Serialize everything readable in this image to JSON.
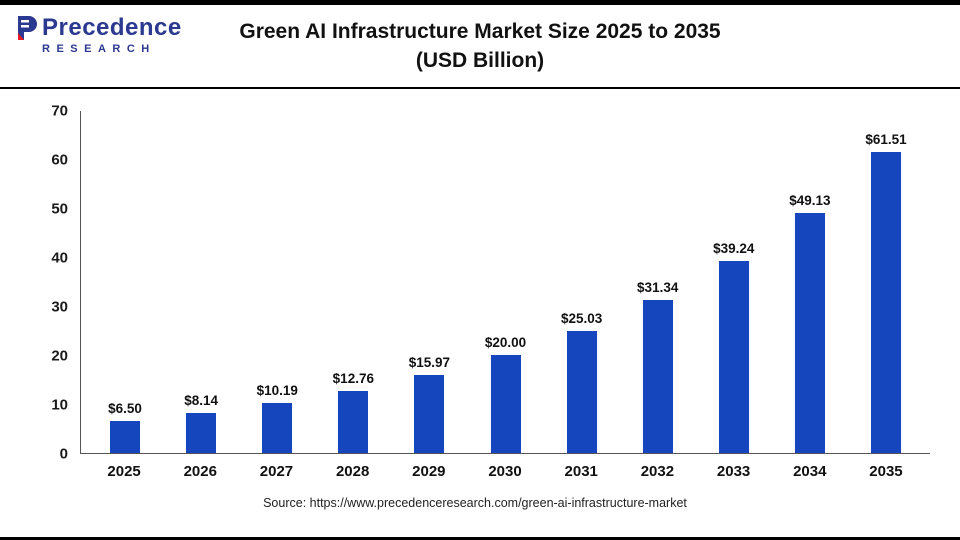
{
  "header": {
    "logo_line1": "Precedence",
    "logo_line2": "RESEARCH",
    "title_line1": "Green AI Infrastructure Market Size 2025 to 2035",
    "title_line2": "(USD Billion)"
  },
  "chart_data": {
    "type": "bar",
    "title": "Green AI Infrastructure Market Size 2025 to 2035 (USD Billion)",
    "categories": [
      "2025",
      "2026",
      "2027",
      "2028",
      "2029",
      "2030",
      "2031",
      "2032",
      "2033",
      "2034",
      "2035"
    ],
    "values": [
      6.5,
      8.14,
      10.19,
      12.76,
      15.97,
      20.0,
      25.03,
      31.34,
      39.24,
      49.13,
      61.51
    ],
    "labels": [
      "$6.50",
      "$8.14",
      "$10.19",
      "$12.76",
      "$15.97",
      "$20.00",
      "$25.03",
      "$31.34",
      "$39.24",
      "$49.13",
      "$61.51"
    ],
    "xlabel": "",
    "ylabel": "",
    "ylim": [
      0,
      70
    ],
    "yticks": [
      0,
      10,
      20,
      30,
      40,
      50,
      60,
      70
    ],
    "grid": false,
    "legend": "none",
    "bar_color": "#1646BE"
  },
  "footer": {
    "source": "Source: https://www.precedenceresearch.com/green-ai-infrastructure-market"
  }
}
